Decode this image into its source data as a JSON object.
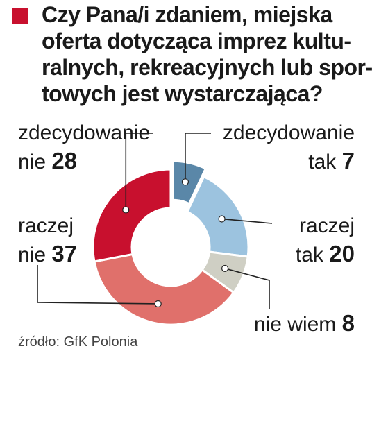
{
  "title_color": "#c8102e",
  "title_lines": [
    "Czy Pana/i zdaniem, miejska",
    "oferta dotycząca imprez kultu-",
    "ralnych, rekreacyjnych lub spor-",
    "towych jest wystarczająca?"
  ],
  "source": "źródło: GfK Polonia",
  "chart_data": {
    "type": "pie",
    "title": "Czy Pana/i zdaniem, miejska oferta dotycząca imprez kulturalnych, rekreacyjnych lub sportowych jest wystarczająca?",
    "donut": true,
    "slices": [
      {
        "key": "zt",
        "label_lines": [
          "zdecydowanie",
          "tak"
        ],
        "value": 7,
        "color": "#5a87a8"
      },
      {
        "key": "rt",
        "label_lines": [
          "raczej",
          "tak"
        ],
        "value": 20,
        "color": "#9cc3df"
      },
      {
        "key": "nw",
        "label_lines": [
          "nie wiem"
        ],
        "value": 8,
        "color": "#cfcfc4"
      },
      {
        "key": "rn",
        "label_lines": [
          "raczej",
          "nie"
        ],
        "value": 37,
        "color": "#e0706b"
      },
      {
        "key": "zn",
        "label_lines": [
          "zdecydowanie",
          "nie"
        ],
        "value": 28,
        "color": "#c8102e"
      }
    ],
    "explode": "zt"
  }
}
